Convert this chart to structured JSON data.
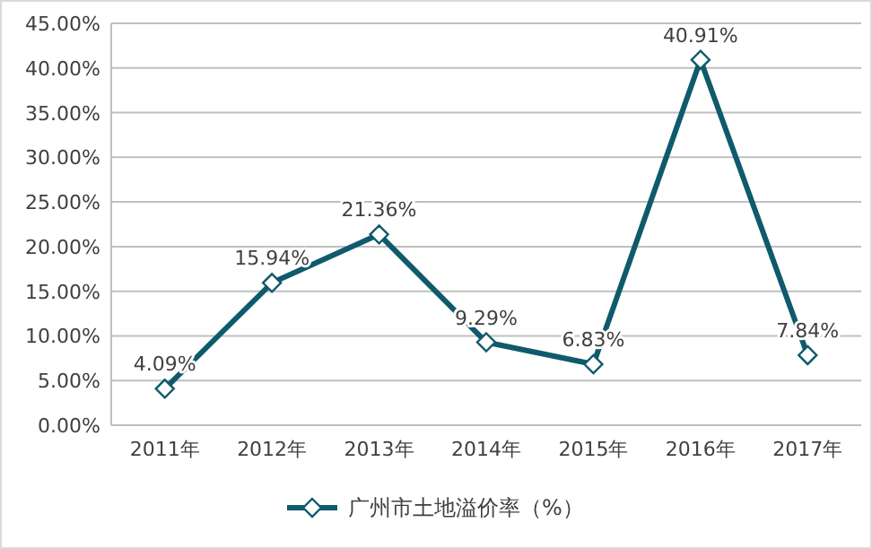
{
  "chart_data": {
    "type": "line",
    "categories": [
      "2011年",
      "2012年",
      "2013年",
      "2014年",
      "2015年",
      "2016年",
      "2017年"
    ],
    "series": [
      {
        "name": "广州市土地溢价率（%）",
        "color": "#0f5a6c",
        "values": [
          4.09,
          15.94,
          21.36,
          9.29,
          6.83,
          40.91,
          7.84
        ],
        "value_labels": [
          "4.09%",
          "15.94%",
          "21.36%",
          "9.29%",
          "6.83%",
          "40.91%",
          "7.84%"
        ]
      }
    ],
    "ylim": [
      0,
      45
    ],
    "yticks": [
      {
        "value": 0,
        "label": "0.00%"
      },
      {
        "value": 5,
        "label": "5.00%"
      },
      {
        "value": 10,
        "label": "10.00%"
      },
      {
        "value": 15,
        "label": "15.00%"
      },
      {
        "value": 20,
        "label": "20.00%"
      },
      {
        "value": 25,
        "label": "25.00%"
      },
      {
        "value": 30,
        "label": "30.00%"
      },
      {
        "value": 35,
        "label": "35.00%"
      },
      {
        "value": 40,
        "label": "40.00%"
      },
      {
        "value": 45,
        "label": "45.00%"
      }
    ],
    "grid": "y",
    "legend": "bottom",
    "marker": "diamond",
    "line_style": "solid"
  }
}
